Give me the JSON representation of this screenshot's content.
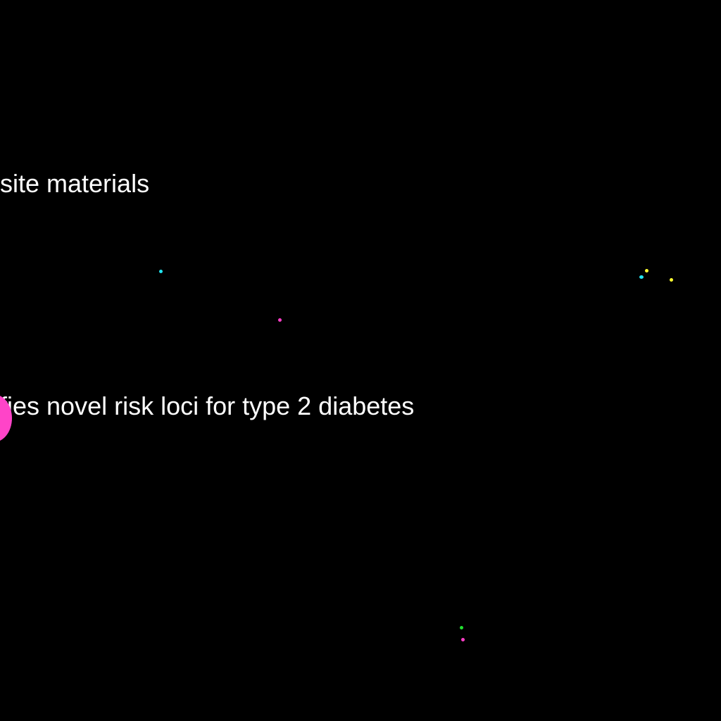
{
  "labels": {
    "upper": "site materials",
    "lower": "fies novel risk loci for type 2 diabetes"
  },
  "colors": {
    "background": "#000000",
    "text": "#ffffff",
    "cyan": "#22e4f0",
    "magenta": "#ff3ec8",
    "yellow": "#ffff30",
    "green": "#22e030",
    "pink": "#ff44c8"
  }
}
